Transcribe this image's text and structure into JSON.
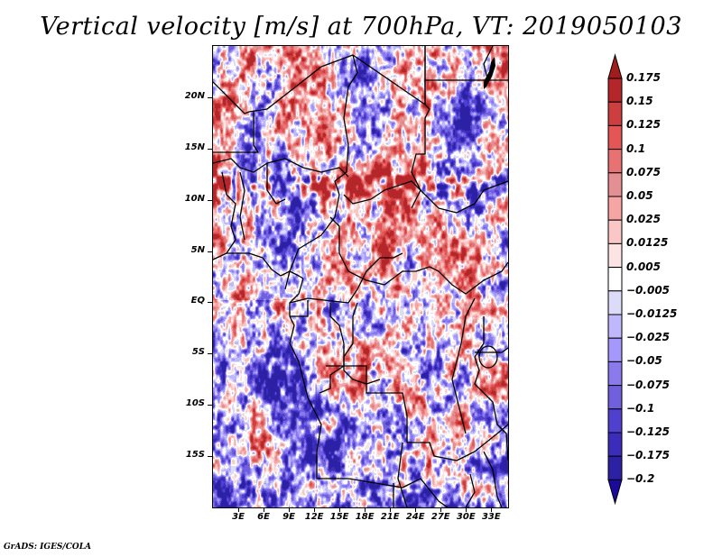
{
  "title": "Vertical velocity [m/s] at 700hPa, VT: 2019050103",
  "footer": "GrADS: IGES/COLA",
  "map": {
    "variable": "Vertical velocity",
    "units": "m/s",
    "level": "700hPa",
    "valid_time": "2019050103",
    "lon_range": [
      0,
      35
    ],
    "lat_range": [
      -20,
      25
    ],
    "y_axis_ticks": [
      {
        "label": "20N",
        "value": 20
      },
      {
        "label": "15N",
        "value": 15
      },
      {
        "label": "10N",
        "value": 10
      },
      {
        "label": "5N",
        "value": 5
      },
      {
        "label": "EQ",
        "value": 0
      },
      {
        "label": "5S",
        "value": -5
      },
      {
        "label": "10S",
        "value": -10
      },
      {
        "label": "15S",
        "value": -15
      }
    ],
    "x_axis_ticks": [
      {
        "label": "3E",
        "value": 3
      },
      {
        "label": "6E",
        "value": 6
      },
      {
        "label": "9E",
        "value": 9
      },
      {
        "label": "12E",
        "value": 12
      },
      {
        "label": "15E",
        "value": 15
      },
      {
        "label": "18E",
        "value": 18
      },
      {
        "label": "21E",
        "value": 21
      },
      {
        "label": "24E",
        "value": 24
      },
      {
        "label": "27E",
        "value": 27
      },
      {
        "label": "30E",
        "value": 30
      },
      {
        "label": "33E",
        "value": 33
      }
    ]
  },
  "colorbar": {
    "labels": [
      "0.175",
      "0.15",
      "0.125",
      "0.1",
      "0.075",
      "0.05",
      "0.025",
      "0.0125",
      "0.005",
      "−0.005",
      "−0.0125",
      "−0.025",
      "−0.05",
      "−0.075",
      "−0.1",
      "−0.125",
      "−0.175",
      "−0.2"
    ],
    "top_arrow_color": "#a11c1c",
    "bottom_arrow_color": "#1c0a9c",
    "colors": [
      "#b4262a",
      "#cd3e3e",
      "#e45656",
      "#e87272",
      "#e49092",
      "#f6a4a4",
      "#fbc6c6",
      "#fde4e4",
      "#ffffff",
      "#dcdcf8",
      "#c0b8fc",
      "#a498fc",
      "#8a7aee",
      "#7060de",
      "#5040d0",
      "#3c2cbc",
      "#2c20a4"
    ]
  }
}
